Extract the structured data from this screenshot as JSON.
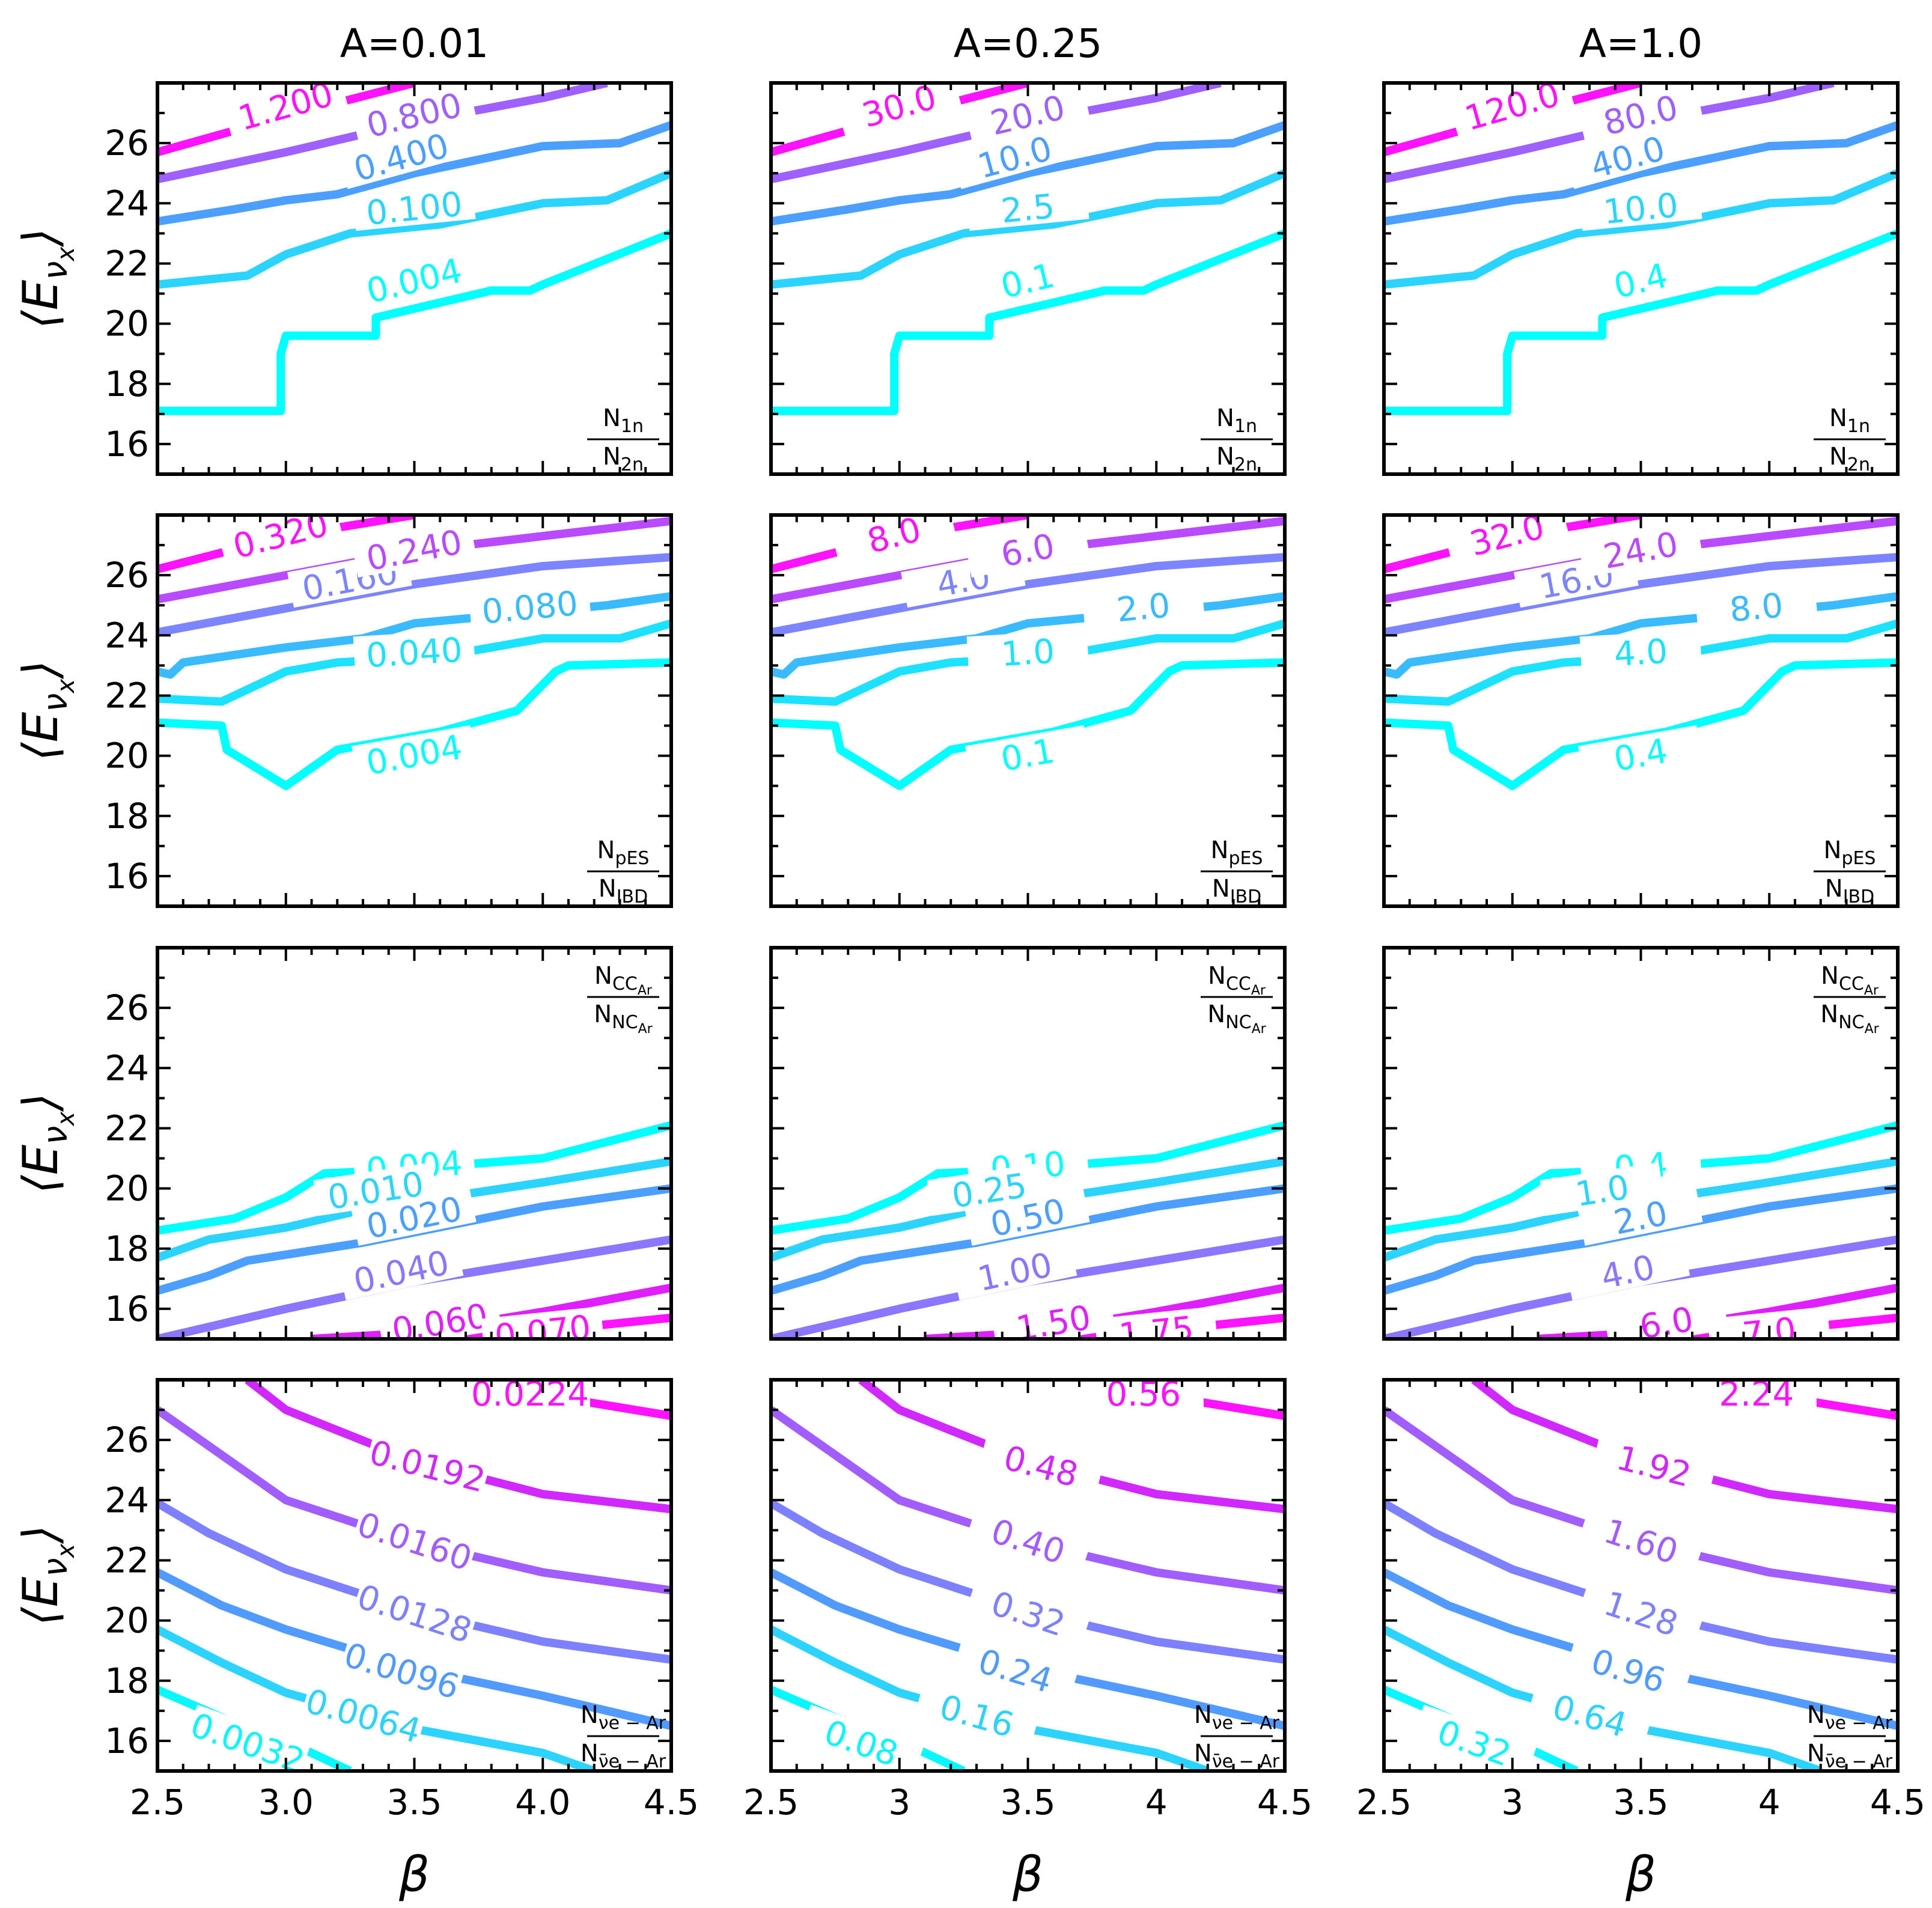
{
  "chart_data": {
    "type": "contour",
    "layout": "4x3 grid",
    "column_titles": [
      "A=0.01",
      "A=0.25",
      "A=1.0"
    ],
    "xlabel": "β",
    "ylabel": "⟨E_νx⟩",
    "xlim": [
      2.5,
      4.5
    ],
    "ylim": [
      15,
      28
    ],
    "x_ticks": [
      2.5,
      3.0,
      3.5,
      4.0,
      4.5
    ],
    "y_ticks": [
      16,
      18,
      20,
      22,
      24,
      26
    ],
    "y_tick_labels": [
      "16",
      "18",
      "20",
      "22",
      "24",
      "26"
    ],
    "x_tick_labels": [
      [
        "2.5",
        "3.0",
        "3.5",
        "4.0",
        "4.5"
      ],
      [
        "2.5",
        "3",
        "3.5",
        "4",
        "4.5"
      ],
      [
        "2.5",
        "3",
        "3.5",
        "4",
        "4.5"
      ]
    ],
    "colormap": "cool",
    "rows": [
      {
        "ratio": {
          "num": "N",
          "num_sub": "1n",
          "den": "N",
          "den_sub": "2n"
        },
        "levels": [
          {
            "labels": [
              "0.004",
              "0.1",
              "0.4"
            ],
            "color": "#00ffff",
            "label_at": [
              3.5,
              21.4
            ],
            "points": [
              [
                2.5,
                17.1
              ],
              [
                2.98,
                17.1
              ],
              [
                2.98,
                19.0
              ],
              [
                3.0,
                19.6
              ],
              [
                3.35,
                19.6
              ],
              [
                3.35,
                20.2
              ],
              [
                3.8,
                21.1
              ],
              [
                3.95,
                21.1
              ],
              [
                4.0,
                21.3
              ],
              [
                4.5,
                23.0
              ]
            ]
          },
          {
            "labels": [
              "0.100",
              "2.5",
              "10.0"
            ],
            "color": "#2bd4ff",
            "label_at": [
              3.5,
              23.8
            ],
            "points": [
              [
                2.5,
                21.3
              ],
              [
                2.85,
                21.6
              ],
              [
                3.0,
                22.3
              ],
              [
                3.25,
                23.0
              ],
              [
                3.6,
                23.3
              ],
              [
                4.0,
                24.0
              ],
              [
                4.25,
                24.1
              ],
              [
                4.5,
                25.0
              ]
            ]
          },
          {
            "labels": [
              "0.400",
              "10.0",
              "40.0"
            ],
            "color": "#4a9fff",
            "label_at": [
              3.45,
              25.5
            ],
            "points": [
              [
                2.5,
                23.4
              ],
              [
                2.8,
                23.8
              ],
              [
                3.0,
                24.1
              ],
              [
                3.2,
                24.3
              ],
              [
                3.5,
                25.0
              ],
              [
                4.0,
                25.9
              ],
              [
                4.3,
                26.0
              ],
              [
                4.5,
                26.6
              ]
            ]
          },
          {
            "labels": [
              "0.800",
              "20.0",
              "80.0"
            ],
            "color": "#9e61ff",
            "label_at": [
              3.5,
              26.9
            ],
            "points": [
              [
                2.5,
                24.8
              ],
              [
                3.0,
                25.7
              ],
              [
                3.5,
                26.7
              ],
              [
                4.0,
                27.5
              ],
              [
                4.25,
                28.0
              ]
            ]
          },
          {
            "labels": [
              "1.200",
              "30.0",
              "120.0"
            ],
            "color": "#ff12ff",
            "label_at": [
              3.0,
              27.2
            ],
            "points": [
              [
                2.5,
                25.7
              ],
              [
                3.0,
                26.9
              ],
              [
                3.5,
                28.0
              ]
            ]
          }
        ]
      },
      {
        "ratio": {
          "num": "N",
          "num_sub": "pES",
          "den": "N",
          "den_sub": "IBD"
        },
        "levels": [
          {
            "labels": [
              "0.004",
              "0.1",
              "0.4"
            ],
            "color": "#00ffff",
            "label_at": [
              3.5,
              20.0
            ],
            "points": [
              [
                2.5,
                21.1
              ],
              [
                2.75,
                21.0
              ],
              [
                2.77,
                20.2
              ],
              [
                3.0,
                19.0
              ],
              [
                3.2,
                20.2
              ],
              [
                3.6,
                20.8
              ],
              [
                3.9,
                21.5
              ],
              [
                4.05,
                22.8
              ],
              [
                4.1,
                23.0
              ],
              [
                4.5,
                23.1
              ]
            ]
          },
          {
            "labels": [
              "0.040",
              "1.0",
              "4.0"
            ],
            "color": "#1de2ff",
            "label_at": [
              3.5,
              23.4
            ],
            "points": [
              [
                2.5,
                21.9
              ],
              [
                2.75,
                21.8
              ],
              [
                3.0,
                22.8
              ],
              [
                3.2,
                23.1
              ],
              [
                3.6,
                23.3
              ],
              [
                4.0,
                23.9
              ],
              [
                4.3,
                23.9
              ],
              [
                4.5,
                24.4
              ]
            ]
          },
          {
            "labels": [
              "0.080",
              "2.0",
              "8.0"
            ],
            "color": "#3bbbff",
            "label_at": [
              3.95,
              24.9
            ],
            "points": [
              [
                2.5,
                22.8
              ],
              [
                2.55,
                22.7
              ],
              [
                2.6,
                23.1
              ],
              [
                3.0,
                23.6
              ],
              [
                3.3,
                23.9
              ],
              [
                3.5,
                24.4
              ],
              [
                4.0,
                24.8
              ],
              [
                4.25,
                25.0
              ],
              [
                4.5,
                25.3
              ]
            ]
          },
          {
            "labels": [
              "0.160",
              "4.0",
              "16.0"
            ],
            "color": "#7c84ff",
            "label_at": [
              3.25,
              25.8
            ],
            "points": [
              [
                2.5,
                24.1
              ],
              [
                3.0,
                24.9
              ],
              [
                3.5,
                25.7
              ],
              [
                4.0,
                26.3
              ],
              [
                4.5,
                26.6
              ]
            ]
          },
          {
            "labels": [
              "0.240",
              "6.0",
              "24.0"
            ],
            "color": "#b94aff",
            "label_at": [
              3.5,
              26.8
            ],
            "points": [
              [
                2.5,
                25.2
              ],
              [
                3.0,
                26.0
              ],
              [
                3.5,
                26.8
              ],
              [
                4.0,
                27.3
              ],
              [
                4.5,
                27.8
              ]
            ]
          },
          {
            "labels": [
              "0.320",
              "8.0",
              "32.0"
            ],
            "color": "#ff12ff",
            "label_at": [
              2.98,
              27.3
            ],
            "points": [
              [
                2.5,
                26.2
              ],
              [
                3.0,
                27.3
              ],
              [
                3.5,
                28.0
              ]
            ]
          }
        ]
      },
      {
        "ratio": {
          "num": "N",
          "num_sub": "CC",
          "num_subsub": "Ar",
          "den": "N",
          "den_sub": "NC",
          "den_subsub": "Ar"
        },
        "levels": [
          {
            "labels": [
              "0.004",
              "0.10",
              "0.4"
            ],
            "color": "#00ffff",
            "label_at": [
              3.5,
              20.7
            ],
            "points": [
              [
                2.5,
                18.6
              ],
              [
                2.8,
                19.0
              ],
              [
                3.0,
                19.7
              ],
              [
                3.15,
                20.5
              ],
              [
                3.4,
                20.6
              ],
              [
                4.0,
                21.0
              ],
              [
                4.5,
                22.1
              ]
            ]
          },
          {
            "labels": [
              "0.010",
              "0.25",
              "1.0"
            ],
            "color": "#2bd4ff",
            "label_at": [
              3.35,
              19.9
            ],
            "points": [
              [
                2.5,
                17.7
              ],
              [
                2.7,
                18.3
              ],
              [
                3.0,
                18.7
              ],
              [
                3.3,
                19.3
              ],
              [
                4.0,
                20.2
              ],
              [
                4.5,
                20.9
              ]
            ]
          },
          {
            "labels": [
              "0.020",
              "0.50",
              "2.0"
            ],
            "color": "#4a9fff",
            "label_at": [
              3.5,
              19.0
            ],
            "points": [
              [
                2.5,
                16.6
              ],
              [
                2.7,
                17.1
              ],
              [
                2.85,
                17.6
              ],
              [
                3.3,
                18.2
              ],
              [
                4.0,
                19.4
              ],
              [
                4.5,
                20.0
              ]
            ]
          },
          {
            "labels": [
              "0.040",
              "1.00",
              "4.0"
            ],
            "color": "#8b76ff",
            "label_at": [
              3.45,
              17.2
            ],
            "points": [
              [
                2.5,
                15.0
              ],
              [
                3.0,
                16.0
              ],
              [
                3.5,
                16.9
              ],
              [
                4.0,
                17.6
              ],
              [
                4.5,
                18.3
              ]
            ]
          },
          {
            "labels": [
              "0.060",
              "1.50",
              "6.0"
            ],
            "color": "#e01fff",
            "label_at": [
              3.6,
              15.5
            ],
            "points": [
              [
                3.1,
                15.0
              ],
              [
                3.5,
                15.2
              ],
              [
                4.0,
                15.9
              ],
              [
                4.5,
                16.7
              ]
            ]
          },
          {
            "labels": [
              "0.070",
              "1.75",
              "7.0"
            ],
            "color": "#ff12ff",
            "label_at": [
              4.0,
              15.2
            ],
            "points": [
              [
                3.7,
                15.0
              ],
              [
                4.5,
                15.7
              ]
            ]
          }
        ]
      },
      {
        "ratio": {
          "num": "N",
          "num_sub": "νe − Ar",
          "den": "N",
          "den_sub": "ν̄e − Ar"
        },
        "levels": [
          {
            "labels": [
              "0.0032",
              "0.08",
              "0.32"
            ],
            "color": "#08f7ff",
            "label_at": [
              2.85,
              15.9
            ],
            "points": [
              [
                2.5,
                17.7
              ],
              [
                2.8,
                16.6
              ],
              [
                3.0,
                16.0
              ],
              [
                3.25,
                15.0
              ]
            ]
          },
          {
            "labels": [
              "0.0064",
              "0.16",
              "0.64"
            ],
            "color": "#2cd3ff",
            "label_at": [
              3.3,
              16.8
            ],
            "points": [
              [
                2.5,
                19.7
              ],
              [
                2.75,
                18.6
              ],
              [
                3.0,
                17.6
              ],
              [
                3.5,
                16.4
              ],
              [
                4.0,
                15.6
              ],
              [
                4.2,
                15.0
              ]
            ]
          },
          {
            "labels": [
              "0.0096",
              "0.24",
              "0.96"
            ],
            "color": "#519aff",
            "label_at": [
              3.45,
              18.3
            ],
            "points": [
              [
                2.5,
                21.6
              ],
              [
                2.75,
                20.5
              ],
              [
                3.0,
                19.7
              ],
              [
                3.5,
                18.4
              ],
              [
                4.0,
                17.5
              ],
              [
                4.5,
                16.5
              ]
            ]
          },
          {
            "labels": [
              "0.0128",
              "0.32",
              "1.28"
            ],
            "color": "#7e81ff",
            "label_at": [
              3.5,
              20.2
            ],
            "points": [
              [
                2.5,
                23.9
              ],
              [
                2.7,
                22.9
              ],
              [
                3.0,
                21.7
              ],
              [
                3.5,
                20.3
              ],
              [
                4.0,
                19.3
              ],
              [
                4.5,
                18.7
              ]
            ]
          },
          {
            "labels": [
              "0.0160",
              "0.40",
              "1.60"
            ],
            "color": "#a25dff",
            "label_at": [
              3.5,
              22.6
            ],
            "points": [
              [
                2.5,
                27.0
              ],
              [
                2.75,
                25.5
              ],
              [
                3.0,
                24.0
              ],
              [
                3.5,
                22.6
              ],
              [
                4.0,
                21.6
              ],
              [
                4.5,
                21.0
              ]
            ]
          },
          {
            "labels": [
              "0.0192",
              "0.48",
              "1.92"
            ],
            "color": "#d028ff",
            "label_at": [
              3.55,
              25.1
            ],
            "points": [
              [
                2.85,
                28.0
              ],
              [
                3.0,
                27.0
              ],
              [
                3.5,
                25.3
              ],
              [
                4.0,
                24.2
              ],
              [
                4.5,
                23.7
              ]
            ]
          },
          {
            "labels": [
              "0.0224",
              "0.56",
              "2.24"
            ],
            "color": "#ff12ff",
            "label_at": [
              3.95,
              27.5
            ],
            "points": [
              [
                4.0,
                27.5
              ],
              [
                4.5,
                26.8
              ]
            ]
          }
        ]
      }
    ]
  }
}
